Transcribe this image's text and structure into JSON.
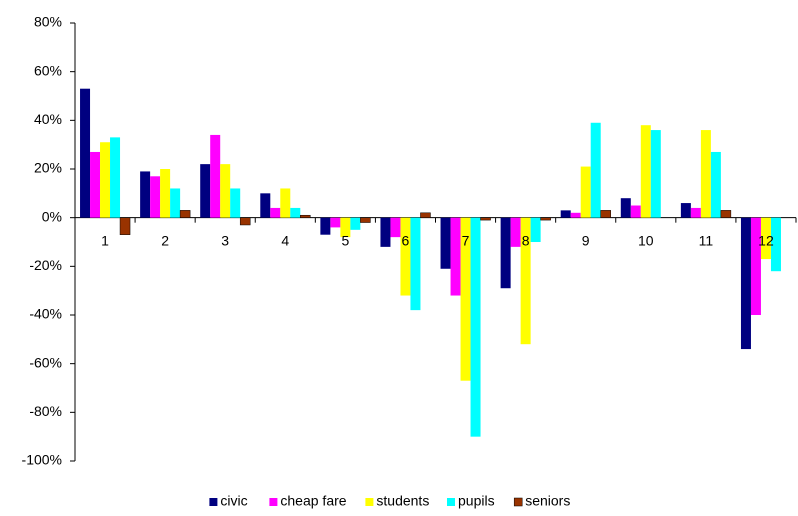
{
  "chart_data": {
    "type": "bar",
    "categories": [
      "1",
      "2",
      "3",
      "4",
      "5",
      "6",
      "7",
      "8",
      "9",
      "10",
      "11",
      "12"
    ],
    "series": [
      {
        "name": "civic",
        "color": "#000080",
        "values": [
          53,
          19,
          22,
          10,
          -7,
          -12,
          -21,
          -29,
          3,
          8,
          6,
          -54
        ]
      },
      {
        "name": "cheap fare",
        "color": "#ff00ff",
        "values": [
          27,
          17,
          34,
          4,
          -4,
          -8,
          -32,
          -12,
          2,
          5,
          4,
          -40
        ]
      },
      {
        "name": "students",
        "color": "#ffff00",
        "values": [
          31,
          20,
          22,
          12,
          -8,
          -32,
          -67,
          -52,
          21,
          38,
          36,
          -17
        ]
      },
      {
        "name": "pupils",
        "color": "#00ffff",
        "values": [
          33,
          12,
          12,
          4,
          -5,
          -38,
          -90,
          -10,
          39,
          36,
          27,
          -22
        ]
      },
      {
        "name": "seniors",
        "color": "#993300",
        "values": [
          -7,
          3,
          -3,
          1,
          -2,
          2,
          -1,
          -1,
          3,
          0,
          3,
          0
        ]
      }
    ],
    "ylim": [
      -100,
      80
    ],
    "yticks": [
      {
        "value": -100,
        "label": "-100%"
      },
      {
        "value": -80,
        "label": "-80%"
      },
      {
        "value": -60,
        "label": "-60%"
      },
      {
        "value": -40,
        "label": "-40%"
      },
      {
        "value": -20,
        "label": "-20%"
      },
      {
        "value": 0,
        "label": "0%"
      },
      {
        "value": 20,
        "label": "20%"
      },
      {
        "value": 40,
        "label": "40%"
      },
      {
        "value": 60,
        "label": "60%"
      },
      {
        "value": 80,
        "label": "80%"
      }
    ],
    "legend": "bottom"
  }
}
